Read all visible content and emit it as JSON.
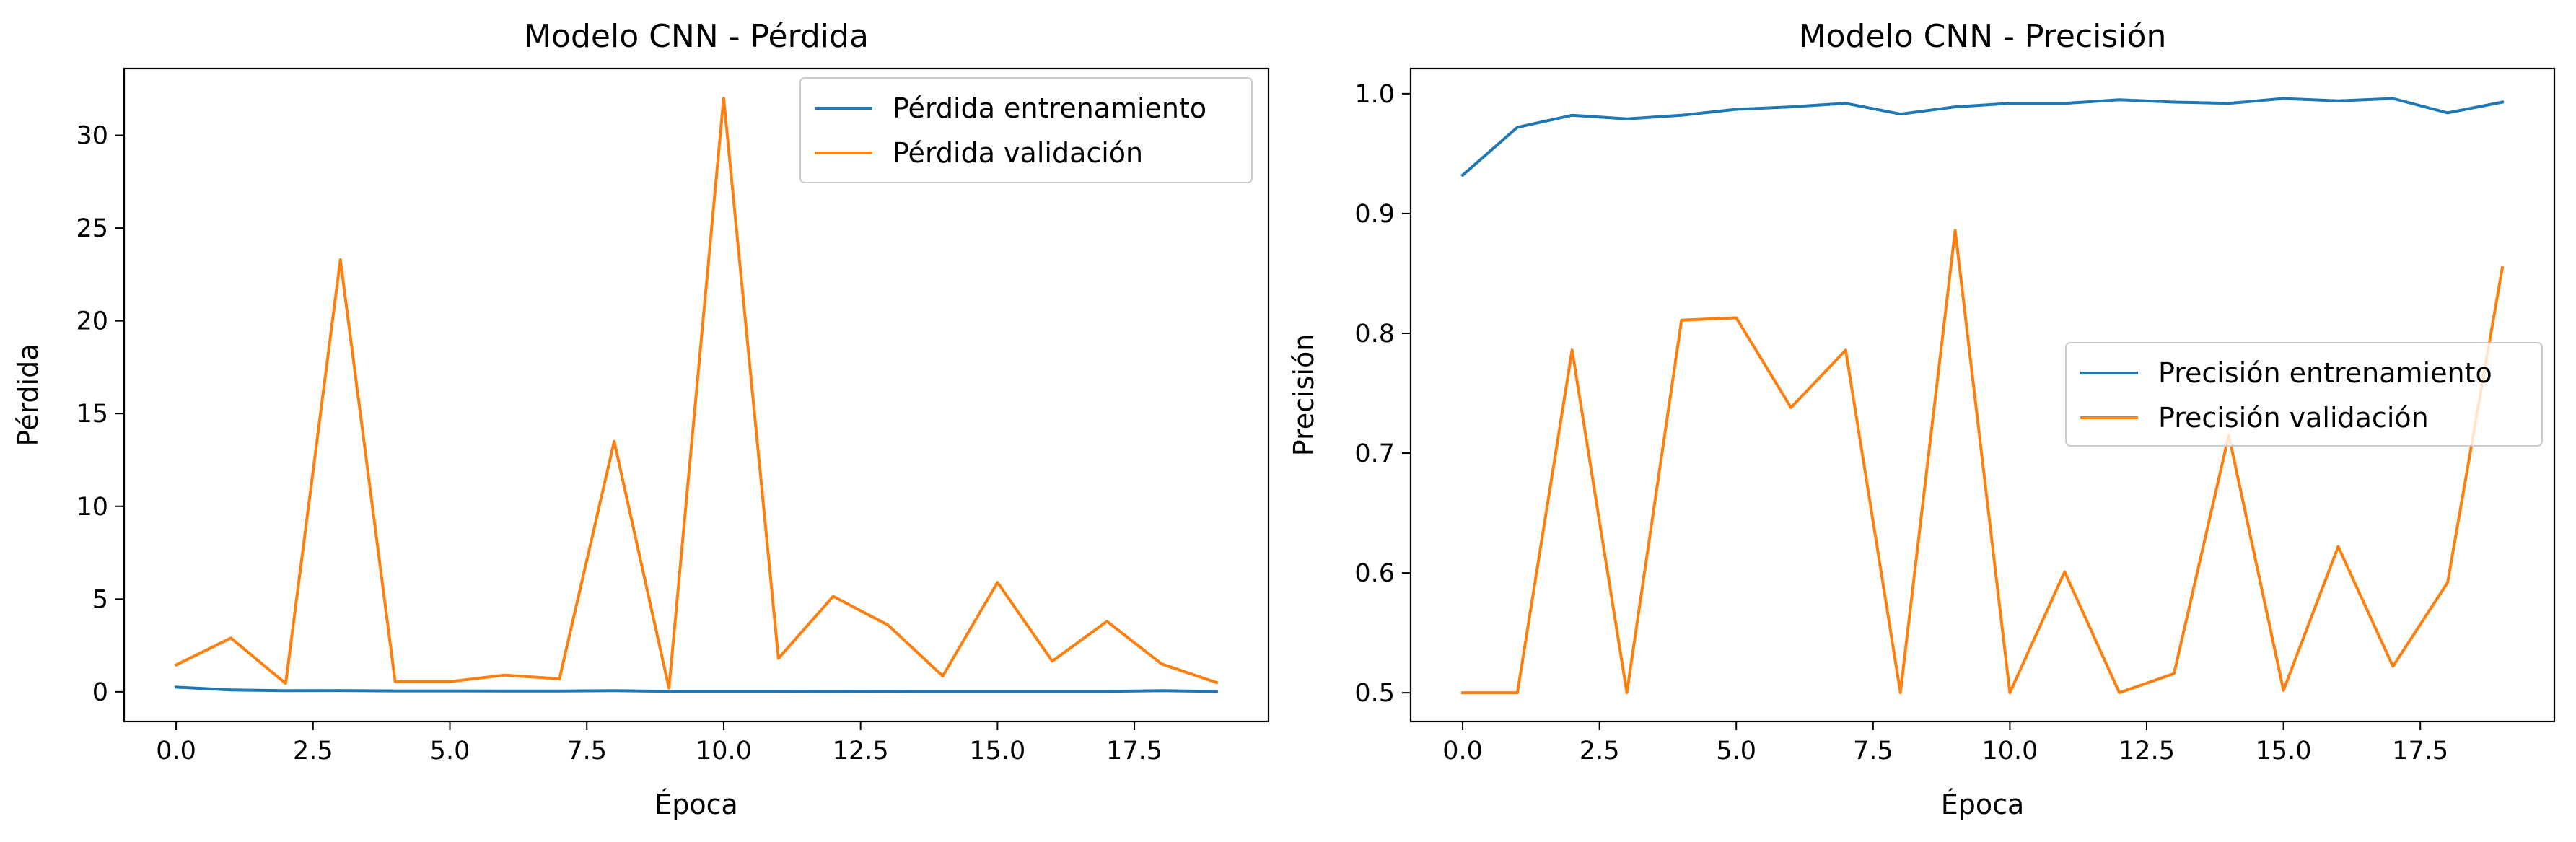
{
  "chart_data": [
    {
      "type": "line",
      "title": "Modelo CNN - Pérdida",
      "xlabel": "Época",
      "ylabel": "Pérdida",
      "xlim": [
        -0.95,
        19.95
      ],
      "ylim": [
        -1.6,
        33.6
      ],
      "x_ticks": [
        0.0,
        2.5,
        5.0,
        7.5,
        10.0,
        12.5,
        15.0,
        17.5
      ],
      "x_tick_labels": [
        "0.0",
        "2.5",
        "5.0",
        "7.5",
        "10.0",
        "12.5",
        "15.0",
        "17.5"
      ],
      "y_ticks": [
        0,
        5,
        10,
        15,
        20,
        25,
        30
      ],
      "y_tick_labels": [
        "0",
        "5",
        "10",
        "15",
        "20",
        "25",
        "30"
      ],
      "grid": false,
      "legend_position": "top-right",
      "x": [
        0,
        1,
        2,
        3,
        4,
        5,
        6,
        7,
        8,
        9,
        10,
        11,
        12,
        13,
        14,
        15,
        16,
        17,
        18,
        19
      ],
      "series": [
        {
          "name": "Pérdida entrenamiento",
          "color": "#1f77b4",
          "values": [
            0.25,
            0.1,
            0.06,
            0.07,
            0.05,
            0.05,
            0.04,
            0.04,
            0.06,
            0.03,
            0.03,
            0.03,
            0.02,
            0.03,
            0.02,
            0.02,
            0.02,
            0.02,
            0.06,
            0.02
          ]
        },
        {
          "name": "Pérdida validación",
          "color": "#ff7f0e",
          "values": [
            1.45,
            2.9,
            0.45,
            23.3,
            0.55,
            0.55,
            0.9,
            0.7,
            13.5,
            0.2,
            32.0,
            1.8,
            5.15,
            3.6,
            0.85,
            5.9,
            1.65,
            3.8,
            1.5,
            0.5
          ]
        }
      ]
    },
    {
      "type": "line",
      "title": "Modelo CNN - Precisión",
      "xlabel": "Época",
      "ylabel": "Precisión",
      "xlim": [
        -0.95,
        19.95
      ],
      "ylim": [
        0.476,
        1.021
      ],
      "x_ticks": [
        0.0,
        2.5,
        5.0,
        7.5,
        10.0,
        12.5,
        15.0,
        17.5
      ],
      "x_tick_labels": [
        "0.0",
        "2.5",
        "5.0",
        "7.5",
        "10.0",
        "12.5",
        "15.0",
        "17.5"
      ],
      "y_ticks": [
        0.5,
        0.6,
        0.7,
        0.8,
        0.9,
        1.0
      ],
      "y_tick_labels": [
        "0.5",
        "0.6",
        "0.7",
        "0.8",
        "0.9",
        "1.0"
      ],
      "grid": false,
      "legend_position": "center-right",
      "x": [
        0,
        1,
        2,
        3,
        4,
        5,
        6,
        7,
        8,
        9,
        10,
        11,
        12,
        13,
        14,
        15,
        16,
        17,
        18,
        19
      ],
      "series": [
        {
          "name": "Precisión entrenamiento",
          "color": "#1f77b4",
          "values": [
            0.932,
            0.972,
            0.982,
            0.979,
            0.982,
            0.987,
            0.989,
            0.992,
            0.983,
            0.989,
            0.992,
            0.992,
            0.995,
            0.993,
            0.992,
            0.996,
            0.994,
            0.996,
            0.984,
            0.993
          ]
        },
        {
          "name": "Precisión validación",
          "color": "#ff7f0e",
          "values": [
            0.5,
            0.5,
            0.786,
            0.5,
            0.811,
            0.813,
            0.738,
            0.786,
            0.5,
            0.886,
            0.5,
            0.601,
            0.5,
            0.516,
            0.715,
            0.502,
            0.622,
            0.522,
            0.592,
            0.855
          ]
        }
      ]
    }
  ]
}
